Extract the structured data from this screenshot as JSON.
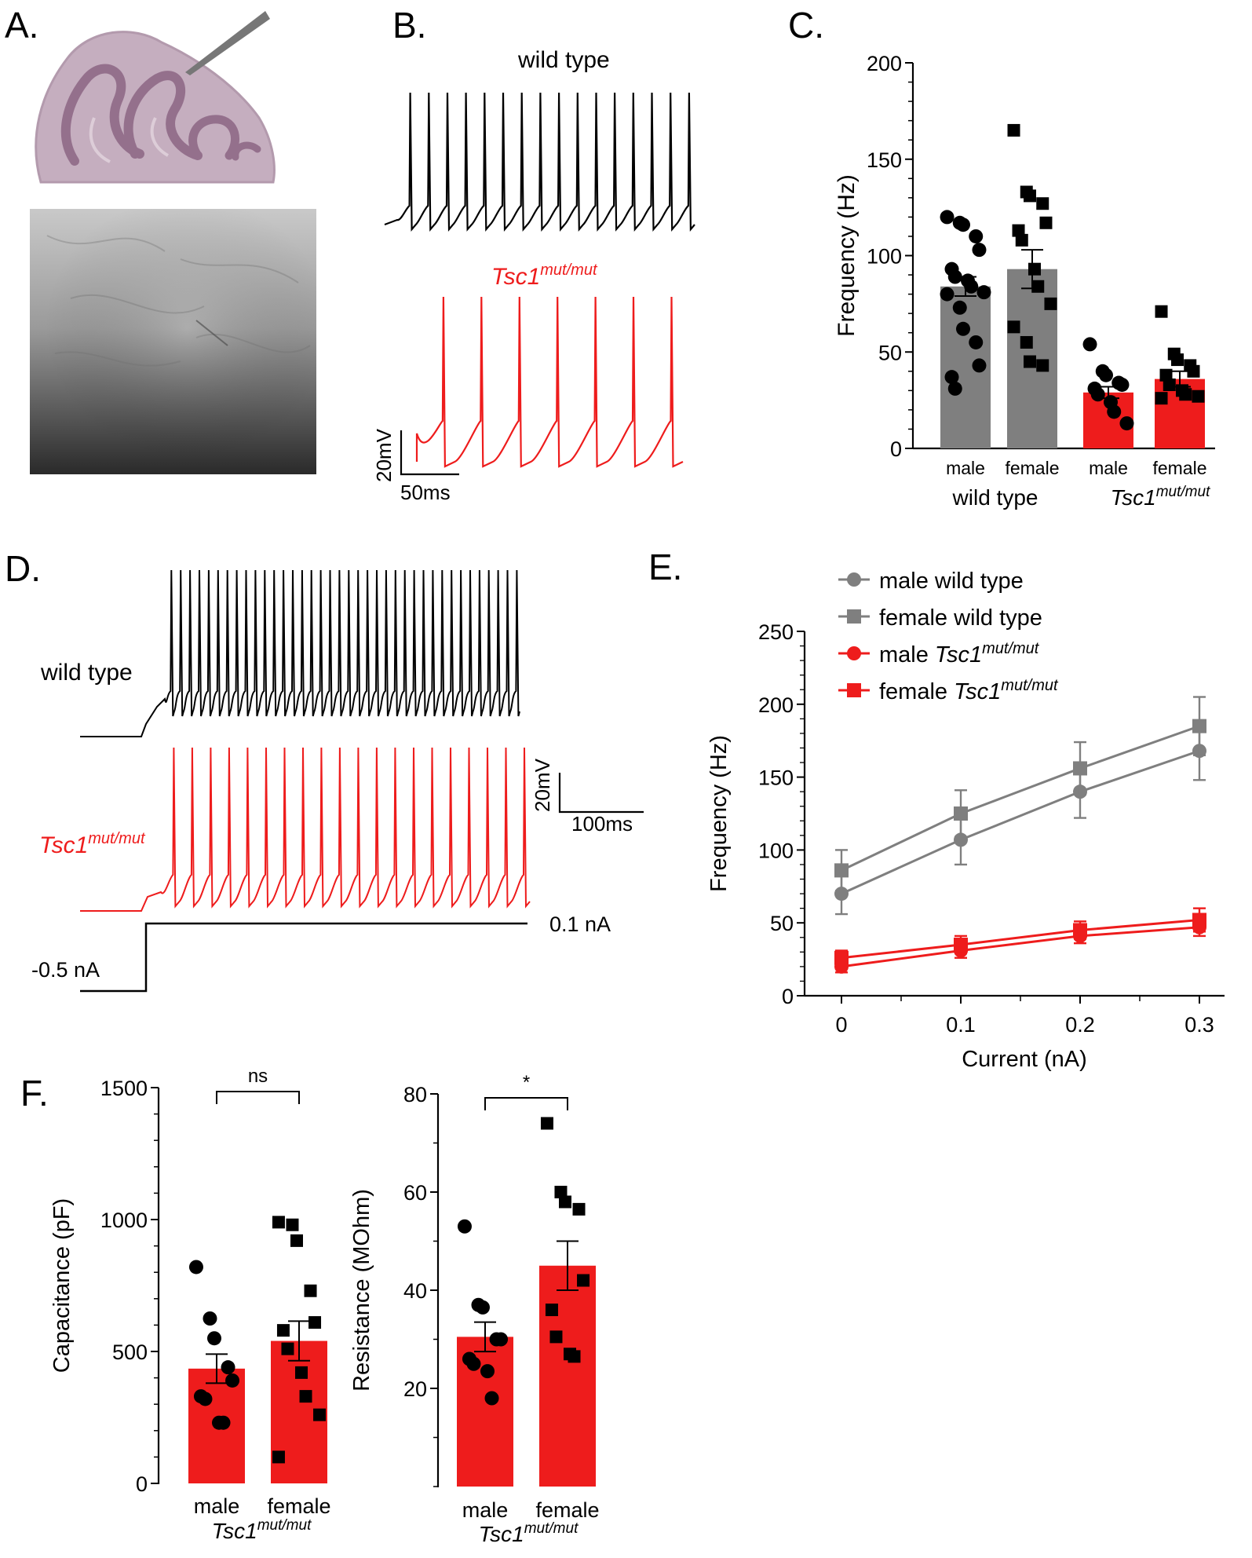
{
  "colors": {
    "wt": "#7f7f7f",
    "mut": "#ee1c1c",
    "black": "#000000",
    "cb_fill": "#c5aebf",
    "cb_dark": "#94708c"
  },
  "panels": {
    "A": {
      "label": "A."
    },
    "B": {
      "label": "B.",
      "trace_wt_label": "wild type",
      "mut_gene": "Tsc1",
      "mut_sup": "mut/mut",
      "scale_v": "20mV",
      "scale_t": "50ms"
    },
    "C": {
      "label": "C."
    },
    "D": {
      "label": "D.",
      "trace_wt_label": "wild type",
      "mut_gene": "Tsc1",
      "mut_sup": "mut/mut",
      "scale_v": "20mV",
      "scale_t": "100ms",
      "step_high": "0.1 nA",
      "step_low": "-0.5 nA"
    },
    "E": {
      "label": "E."
    },
    "F": {
      "label": "F."
    }
  },
  "chart_data": [
    {
      "id": "C",
      "type": "bar",
      "ylabel": "Frequency (Hz)",
      "ylim": [
        0,
        200
      ],
      "yticks": [
        0,
        50,
        100,
        150,
        200
      ],
      "categories": [
        "male",
        "female",
        "male",
        "female"
      ],
      "groups": [
        "wild type",
        "Tsc1 mut/mut"
      ],
      "group_gene": "Tsc1",
      "group_sup": "mut/mut",
      "means": [
        84,
        93,
        29,
        36
      ],
      "sem": [
        5,
        10,
        3,
        4
      ],
      "bar_colors": [
        "#7f7f7f",
        "#7f7f7f",
        "#ee1c1c",
        "#ee1c1c"
      ],
      "points": [
        [
          120,
          117,
          116,
          110,
          103,
          93,
          89,
          87,
          84,
          81,
          80,
          73,
          62,
          55,
          43,
          37,
          31
        ],
        [
          165,
          133,
          131,
          127,
          117,
          113,
          108,
          93,
          84,
          75,
          63,
          55,
          45,
          43
        ],
        [
          54,
          40,
          38,
          34,
          33,
          31,
          28,
          24,
          19,
          13
        ],
        [
          71,
          49,
          46,
          43,
          40,
          38,
          33,
          30,
          28,
          27,
          26
        ]
      ]
    },
    {
      "id": "E",
      "type": "line",
      "xlabel": "Current (nA)",
      "ylabel": "Frequency (Hz)",
      "xlim": [
        0,
        0.3
      ],
      "ylim": [
        0,
        250
      ],
      "xticks": [
        0,
        0.1,
        0.2,
        0.3
      ],
      "yticks": [
        0,
        50,
        100,
        150,
        200,
        250
      ],
      "x": [
        0,
        0.1,
        0.2,
        0.3
      ],
      "series": [
        {
          "name": "male wild type",
          "label_pre": "male wild type",
          "label_gene": "",
          "label_sup": "",
          "marker": "circle",
          "color": "#7f7f7f",
          "values": [
            70,
            107,
            140,
            168
          ],
          "err": [
            14,
            17,
            18,
            20
          ]
        },
        {
          "name": "female wild type",
          "label_pre": "female wild type",
          "label_gene": "",
          "label_sup": "",
          "marker": "square",
          "color": "#7f7f7f",
          "values": [
            86,
            125,
            156,
            185
          ],
          "err": [
            14,
            16,
            18,
            20
          ]
        },
        {
          "name": "male Tsc1 mut/mut",
          "label_pre": "male ",
          "label_gene": "Tsc1",
          "label_sup": "mut/mut",
          "marker": "circle",
          "color": "#ee1c1c",
          "values": [
            20,
            31,
            41,
            47
          ],
          "err": [
            4,
            5,
            5,
            6
          ]
        },
        {
          "name": "female Tsc1 mut/mut",
          "label_pre": "female ",
          "label_gene": "Tsc1",
          "label_sup": "mut/mut",
          "marker": "square",
          "color": "#ee1c1c",
          "values": [
            26,
            35,
            45,
            52
          ],
          "err": [
            5,
            6,
            6,
            8
          ]
        }
      ]
    },
    {
      "id": "F1",
      "type": "bar",
      "ylabel": "Capacitance (pF)",
      "ylim": [
        0,
        1500
      ],
      "yticks": [
        0,
        500,
        1000,
        1500
      ],
      "categories": [
        "male",
        "female"
      ],
      "group_gene": "Tsc1",
      "group_sup": "mut/mut",
      "means": [
        435,
        540
      ],
      "sem": [
        55,
        75
      ],
      "bar_colors": [
        "#ee1c1c",
        "#ee1c1c"
      ],
      "significance": "ns",
      "points": [
        [
          820,
          625,
          550,
          440,
          390,
          330,
          320,
          230,
          230
        ],
        [
          990,
          980,
          920,
          730,
          610,
          580,
          510,
          420,
          330,
          260,
          100
        ]
      ]
    },
    {
      "id": "F2",
      "type": "bar",
      "ylabel": "Resistance (MOhm)",
      "ylim": [
        0,
        80
      ],
      "yticks": [
        20,
        40,
        60,
        80
      ],
      "categories": [
        "male",
        "female"
      ],
      "group_gene": "Tsc1",
      "group_sup": "mut/mut",
      "means": [
        30.5,
        45
      ],
      "sem": [
        3,
        5
      ],
      "bar_colors": [
        "#ee1c1c",
        "#ee1c1c"
      ],
      "significance": "*",
      "points": [
        [
          53,
          37,
          36.5,
          30,
          30,
          26,
          25,
          23.5,
          18
        ],
        [
          74,
          60,
          58,
          56.5,
          42,
          36,
          30.5,
          27,
          26.5
        ]
      ]
    }
  ]
}
